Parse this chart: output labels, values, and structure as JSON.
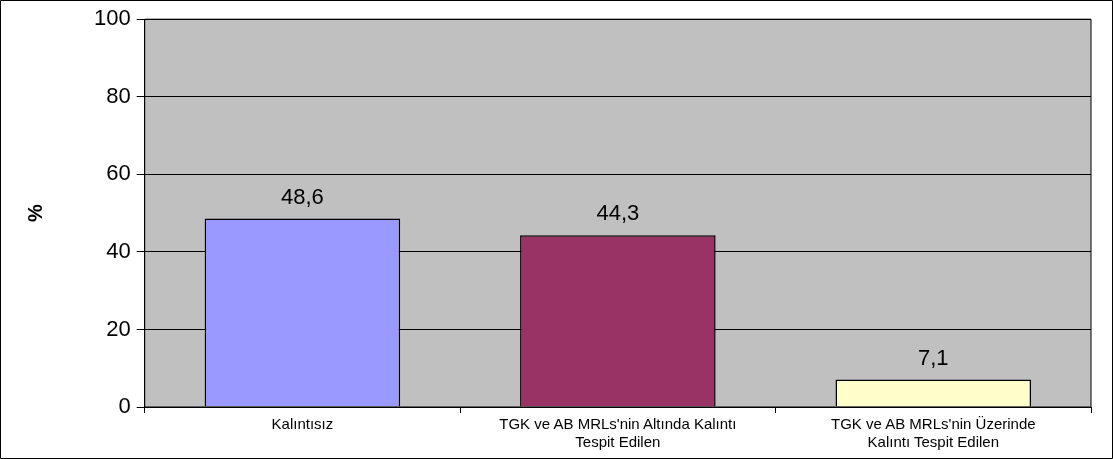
{
  "chart_data": {
    "type": "bar",
    "ylabel": "%",
    "categories": [
      "Kalıntısız",
      "TGK ve AB MRLs'nin Altında Kalıntı Tespit Edilen",
      "TGK ve AB MRLs'nin Üzerinde Kalıntı Tespit Edilen"
    ],
    "values": [
      48.6,
      44.3,
      7.1
    ],
    "colors": [
      "#9999ff",
      "#993366",
      "#ffffcc"
    ],
    "value_labels": [
      "48,6",
      "44,3",
      "7,1"
    ],
    "ylim": [
      0,
      100
    ],
    "yticks": [
      0,
      20,
      40,
      60,
      80,
      100
    ],
    "grid": "y",
    "legend": false
  }
}
